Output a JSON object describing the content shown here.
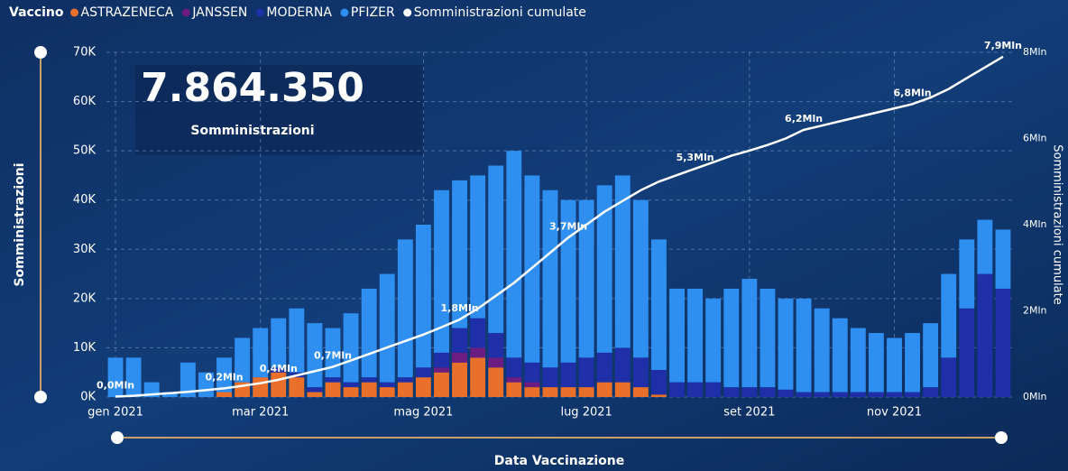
{
  "chart_data": {
    "type": "bar",
    "stacked": true,
    "legend_title": "Vaccino",
    "kpi": {
      "value": "7.864.350",
      "label": "Somministrazioni"
    },
    "ylabel": "Somministrazioni",
    "y2label": "Somministrazioni cumulate",
    "xlabel": "Data Vaccinazione",
    "categories": [
      "gen 2021",
      null,
      null,
      null,
      null,
      null,
      null,
      null,
      "mar 2021",
      null,
      null,
      null,
      null,
      null,
      null,
      null,
      null,
      "mag 2021",
      null,
      null,
      null,
      null,
      null,
      null,
      null,
      null,
      "lug 2021",
      null,
      null,
      null,
      null,
      null,
      null,
      null,
      null,
      "set 2021",
      null,
      null,
      null,
      null,
      null,
      null,
      null,
      "nov 2021",
      null,
      null,
      null,
      null,
      null,
      null
    ],
    "ylim": [
      0,
      70000
    ],
    "yticks": [
      {
        "value": 0,
        "label": "0K"
      },
      {
        "value": 10000,
        "label": "10K"
      },
      {
        "value": 20000,
        "label": "20K"
      },
      {
        "value": 30000,
        "label": "30K"
      },
      {
        "value": 40000,
        "label": "40K"
      },
      {
        "value": 50000,
        "label": "50K"
      },
      {
        "value": 60000,
        "label": "60K"
      },
      {
        "value": 70000,
        "label": "70K"
      }
    ],
    "y2lim": [
      0,
      8000000
    ],
    "y2ticks": [
      {
        "value": 0,
        "label": "0Mln"
      },
      {
        "value": 2000000,
        "label": "2Mln"
      },
      {
        "value": 4000000,
        "label": "4Mln"
      },
      {
        "value": 6000000,
        "label": "6Mln"
      },
      {
        "value": 8000000,
        "label": "8Mln"
      }
    ],
    "grid": true,
    "series": [
      {
        "name": "ASTRAZENECA",
        "color": "#e8702a",
        "values": [
          0,
          0,
          0,
          0,
          0,
          0,
          1000,
          3000,
          4000,
          5000,
          4000,
          1000,
          3000,
          2000,
          3000,
          2000,
          3000,
          4000,
          5000,
          7000,
          8000,
          6000,
          3000,
          2000,
          2000,
          2000,
          2000,
          3000,
          3000,
          2000,
          500,
          0,
          0,
          0,
          0,
          0,
          0,
          0,
          0,
          0,
          0,
          0,
          0,
          0,
          0,
          0,
          0,
          0,
          0,
          0
        ]
      },
      {
        "name": "JANSSEN",
        "color": "#6b1d82",
        "values": [
          0,
          0,
          0,
          0,
          0,
          0,
          0,
          0,
          0,
          0,
          0,
          0,
          0,
          0,
          0,
          0,
          0,
          0,
          1000,
          2000,
          2000,
          2000,
          1000,
          1000,
          0,
          0,
          0,
          0,
          0,
          0,
          0,
          0,
          0,
          0,
          0,
          0,
          0,
          0,
          0,
          0,
          0,
          0,
          0,
          0,
          0,
          0,
          0,
          0,
          0,
          0
        ]
      },
      {
        "name": "MODERNA",
        "color": "#1f2fa8",
        "values": [
          0,
          0,
          0,
          0,
          0,
          0,
          0,
          0,
          0,
          1000,
          1000,
          1000,
          1000,
          1000,
          1000,
          1000,
          1000,
          2000,
          3000,
          5000,
          6000,
          5000,
          4000,
          4000,
          4000,
          5000,
          6000,
          6000,
          7000,
          6000,
          5000,
          3000,
          3000,
          3000,
          2000,
          2000,
          2000,
          1500,
          1000,
          1000,
          1000,
          1000,
          1000,
          1000,
          1000,
          2000,
          8000,
          18000,
          25000,
          22000
        ]
      },
      {
        "name": "PFIZER",
        "color": "#2f8ff0",
        "values": [
          8000,
          8000,
          3000,
          1000,
          7000,
          5000,
          7000,
          9000,
          10000,
          10000,
          13000,
          13000,
          10000,
          14000,
          18000,
          22000,
          28000,
          29000,
          33000,
          30000,
          29000,
          34000,
          42000,
          38000,
          36000,
          33000,
          32000,
          34000,
          35000,
          32000,
          26500,
          19000,
          19000,
          17000,
          20000,
          22000,
          20000,
          18500,
          19000,
          17000,
          15000,
          13000,
          12000,
          11000,
          12000,
          13000,
          17000,
          14000,
          11000,
          12000
        ]
      },
      {
        "name": "Somministrazioni cumulate",
        "type": "line",
        "axis": "y2",
        "color": "#ffffff",
        "values": [
          10000,
          30000,
          60000,
          90000,
          120000,
          160000,
          200000,
          260000,
          320000,
          400000,
          500000,
          600000,
          700000,
          850000,
          1000000,
          1150000,
          1300000,
          1450000,
          1620000,
          1800000,
          2050000,
          2350000,
          2650000,
          3000000,
          3350000,
          3700000,
          4000000,
          4300000,
          4550000,
          4800000,
          5000000,
          5150000,
          5300000,
          5450000,
          5600000,
          5720000,
          5850000,
          6000000,
          6200000,
          6300000,
          6400000,
          6500000,
          6600000,
          6700000,
          6800000,
          6950000,
          7150000,
          7400000,
          7650000,
          7900000
        ],
        "value_labels": [
          "0,0Mln",
          null,
          null,
          null,
          null,
          null,
          "0,2Mln",
          null,
          null,
          "0,4Mln",
          null,
          null,
          "0,7Mln",
          null,
          null,
          null,
          null,
          null,
          null,
          "1,8Mln",
          null,
          null,
          null,
          null,
          null,
          "3,7Mln",
          null,
          null,
          null,
          null,
          null,
          null,
          "5,3Mln",
          null,
          null,
          null,
          null,
          null,
          "6,2Mln",
          null,
          null,
          null,
          null,
          null,
          "6,8Mln",
          null,
          null,
          null,
          null,
          "7,9Mln"
        ]
      }
    ]
  }
}
